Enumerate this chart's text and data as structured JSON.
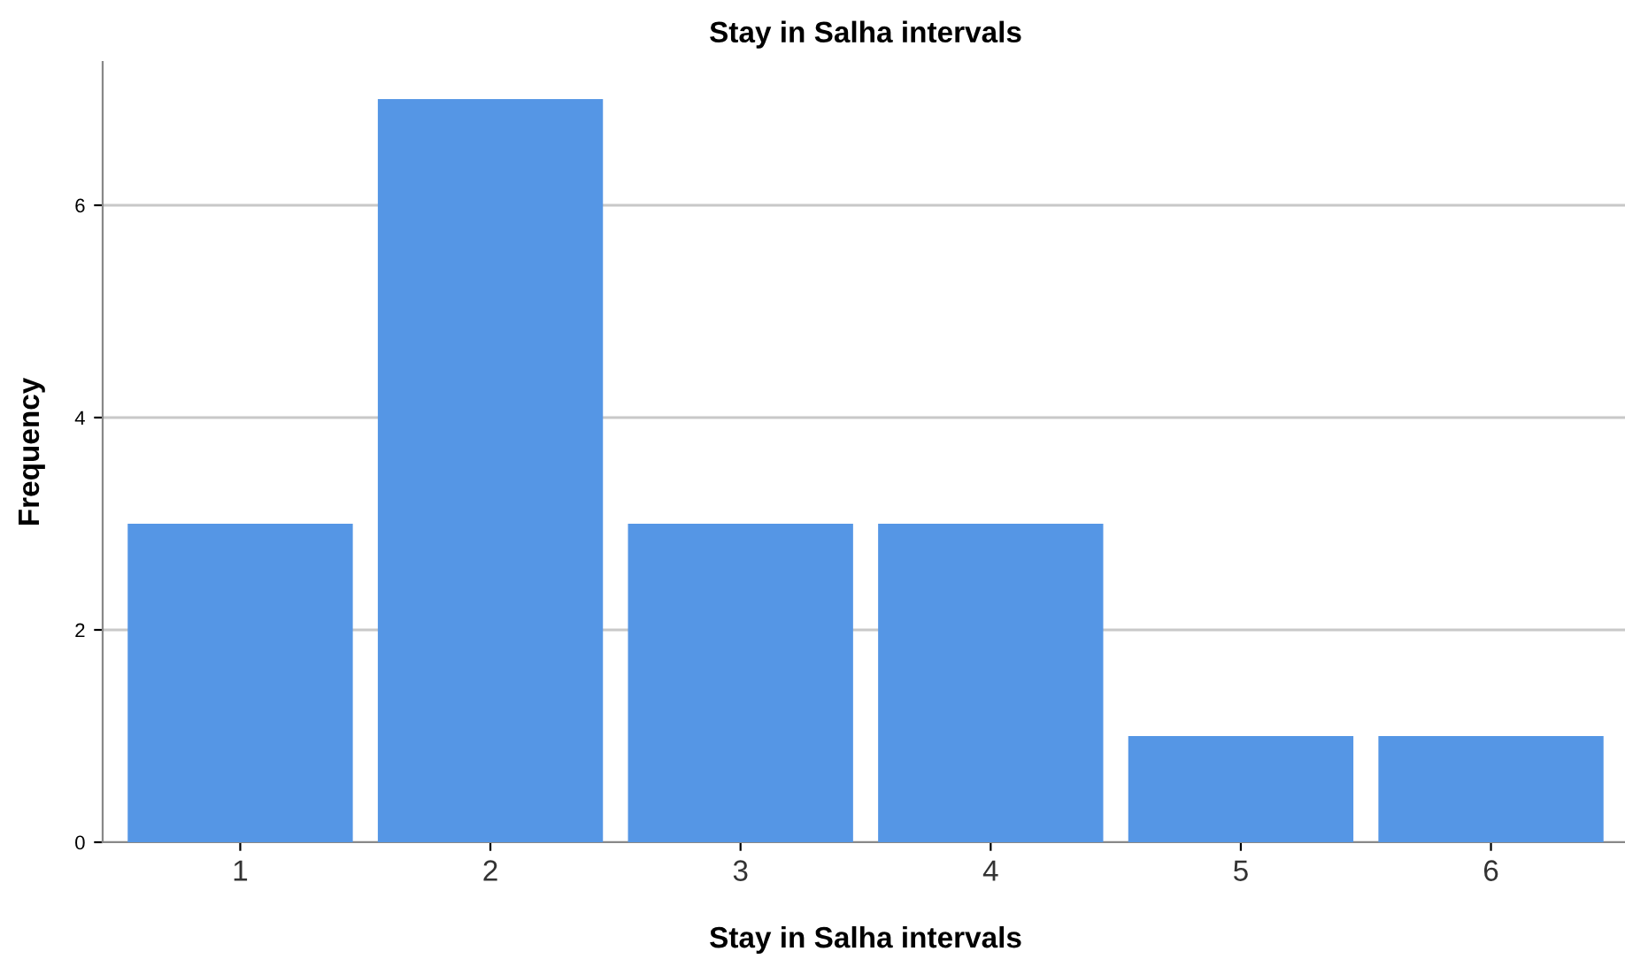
{
  "chart_data": {
    "type": "bar",
    "title": "Stay in Salha intervals",
    "xlabel": "Stay in Salha intervals",
    "ylabel": "Frequency",
    "categories": [
      "1",
      "2",
      "3",
      "4",
      "5",
      "6"
    ],
    "values": [
      3,
      7,
      3,
      3,
      1,
      1
    ],
    "color": "#5596e5",
    "ylim": [
      0,
      7.35
    ],
    "yticks": [
      0,
      2,
      4,
      6
    ],
    "grid": "y",
    "legend": false
  }
}
